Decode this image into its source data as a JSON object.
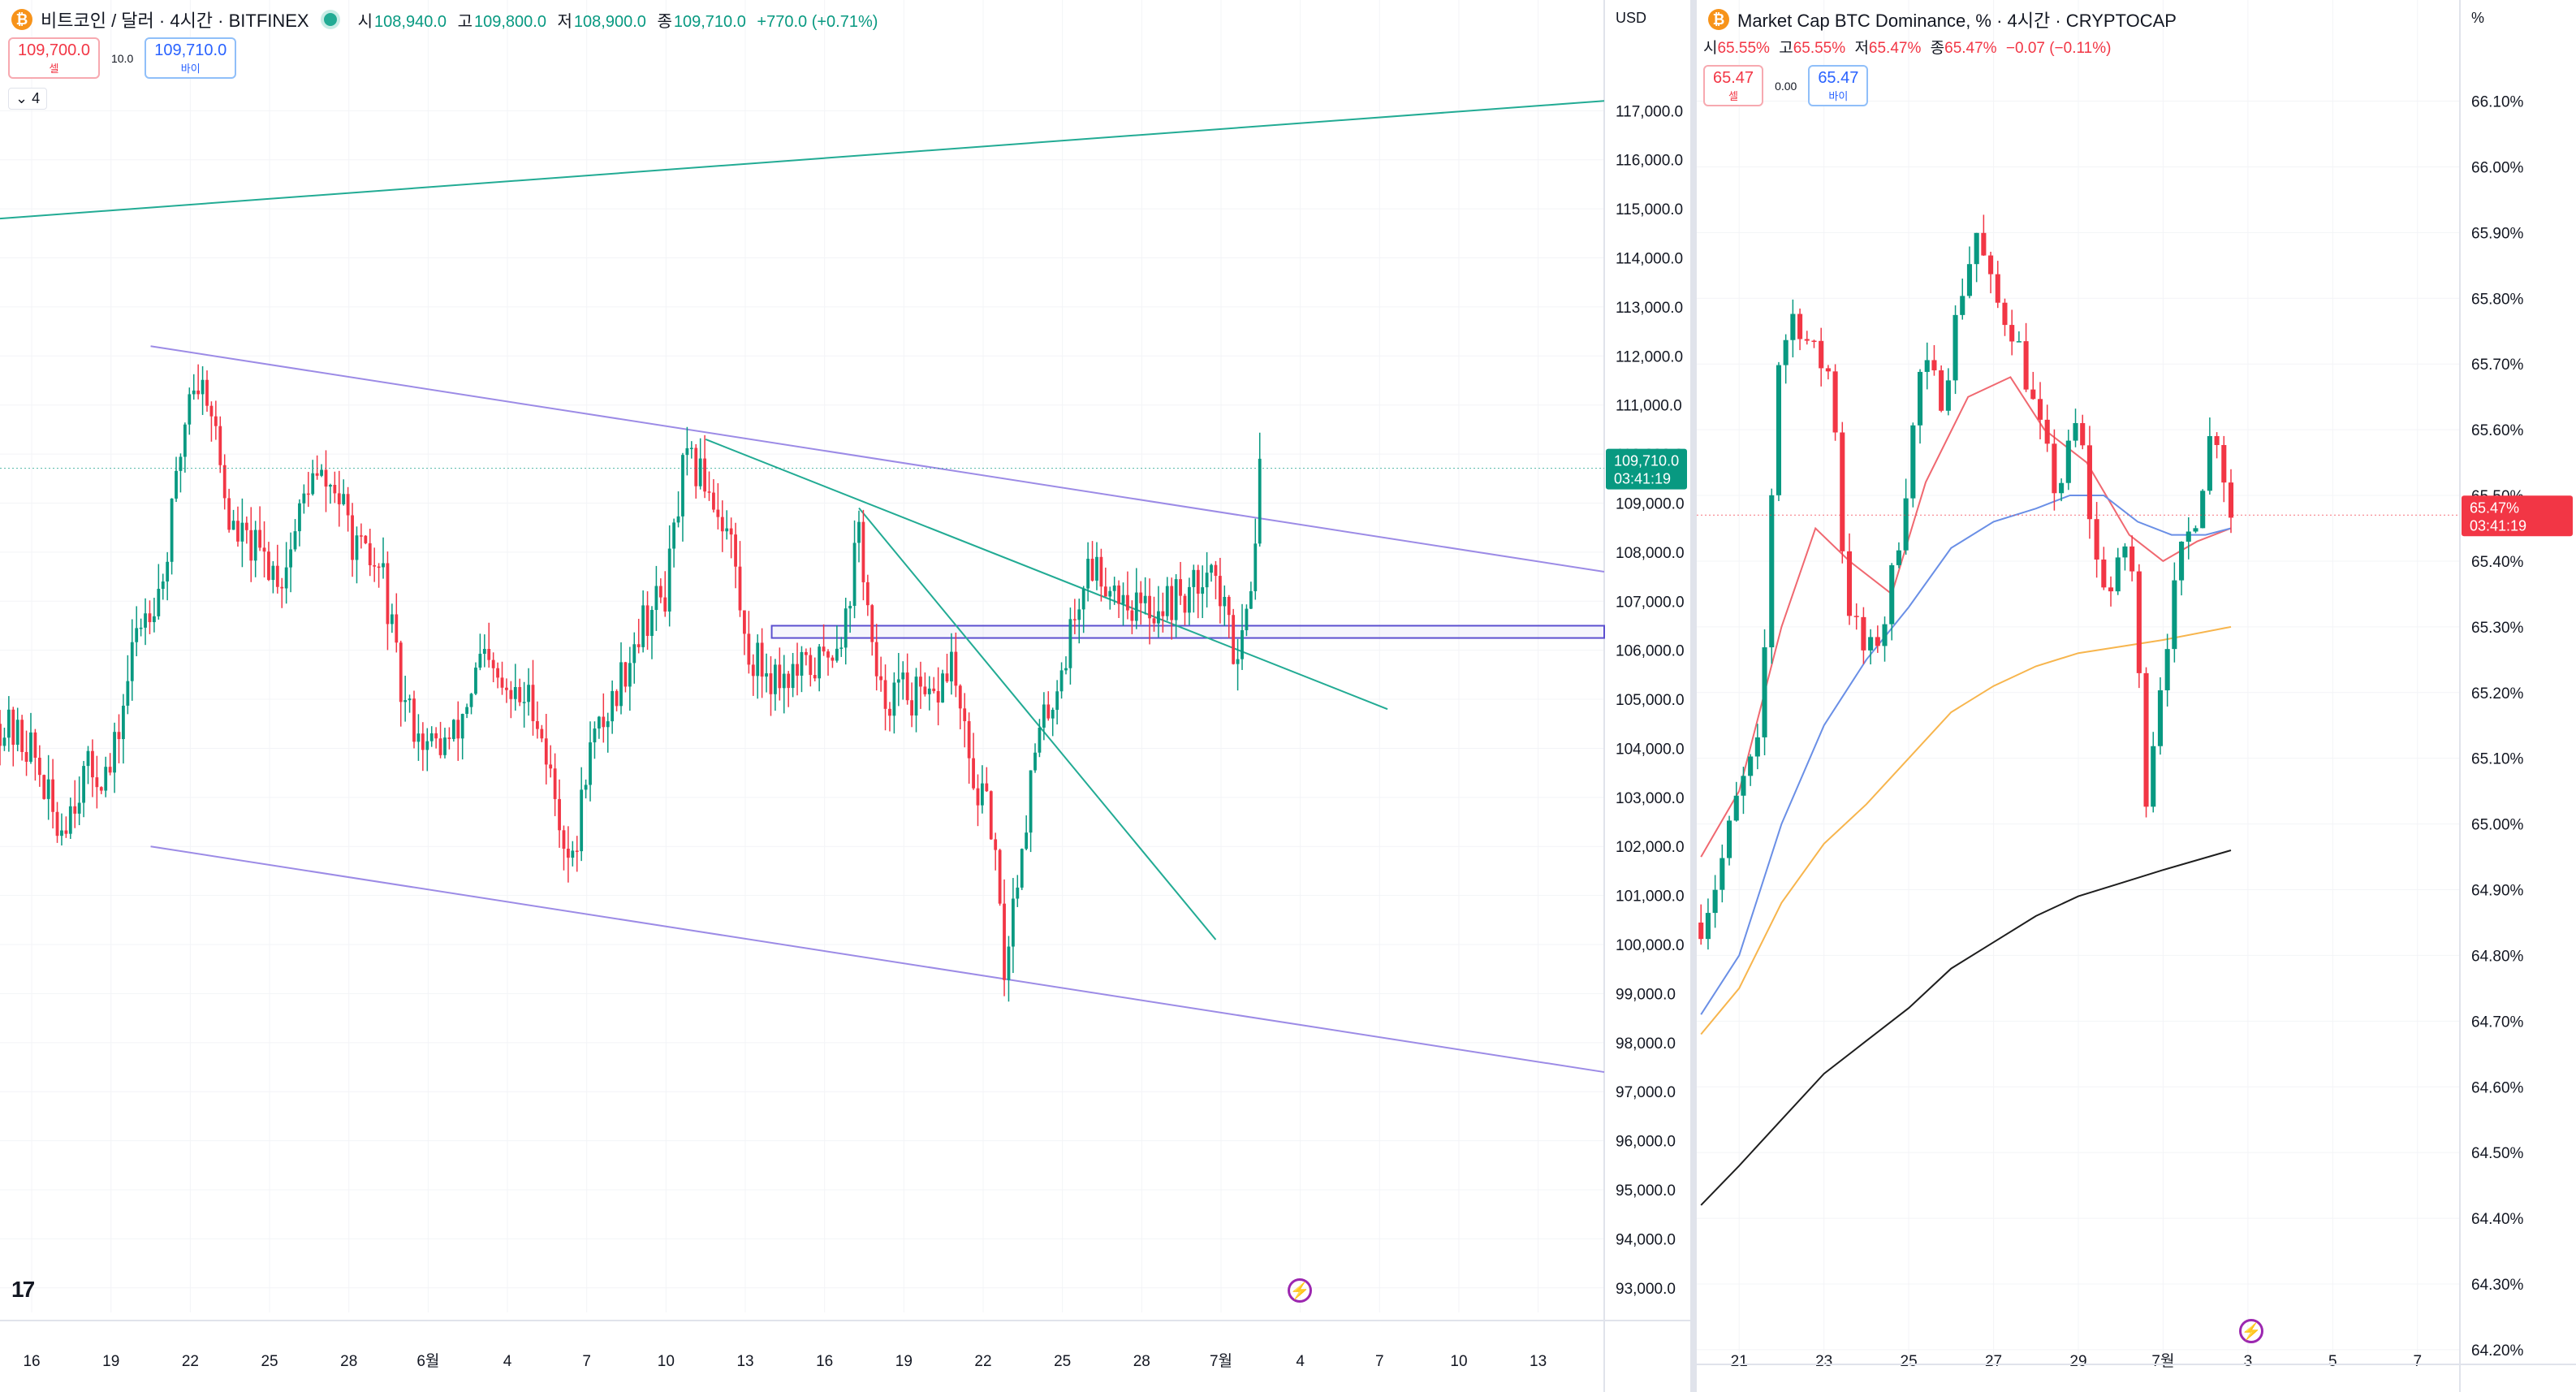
{
  "left": {
    "symbol_title": "비트코인 / 달러 · 4시간 · BITFINEX",
    "coin_glyph": "₿",
    "ohlc": [
      {
        "k": "시",
        "v": "108,940.0"
      },
      {
        "k": "고",
        "v": "109,800.0"
      },
      {
        "k": "저",
        "v": "108,900.0"
      },
      {
        "k": "종",
        "v": "109,710.0"
      }
    ],
    "change": "+770.0 (+0.71%)",
    "sell_price": "109,700.0",
    "sell_label": "셀",
    "spread": "10.0",
    "buy_price": "109,710.0",
    "buy_label": "바이",
    "indicator_toggle": "⌄ 4",
    "currency": "USD",
    "last_price_label": "109,710.0",
    "countdown": "03:41:19",
    "tv_logo": "17",
    "bolt_glyph": "⚡"
  },
  "right": {
    "symbol_title": "Market Cap BTC Dominance, % · 4시간 · CRYPTOCAP",
    "coin_glyph": "₿",
    "ohlc": [
      {
        "k": "시",
        "v": "65.55%"
      },
      {
        "k": "고",
        "v": "65.55%"
      },
      {
        "k": "저",
        "v": "65.47%"
      },
      {
        "k": "종",
        "v": "65.47%"
      }
    ],
    "change": "−0.07 (−0.11%)",
    "sell_price": "65.47",
    "sell_label": "셀",
    "spread": "0.00",
    "buy_price": "65.47",
    "buy_label": "바이",
    "unit": "%",
    "last_price_label": "65.47%",
    "countdown": "03:41:19",
    "bolt_glyph": "⚡"
  },
  "chart_data": [
    {
      "type": "candlestick",
      "title": "비트코인 / 달러 · 4시간 · BITFINEX",
      "ylabel": "USD",
      "ylim": [
        92500,
        117800
      ],
      "y_ticks": [
        "117,000.0",
        "116,000.0",
        "115,000.0",
        "114,000.0",
        "113,000.0",
        "112,000.0",
        "111,000.0",
        "110,000.0",
        "109,000.0",
        "108,000.0",
        "107,000.0",
        "106,000.0",
        "105,000.0",
        "104,000.0",
        "103,000.0",
        "102,000.0",
        "101,000.0",
        "100,000.0",
        "99,000.0",
        "98,000.0",
        "97,000.0",
        "96,000.0",
        "95,000.0",
        "94,000.0",
        "93,000.0"
      ],
      "x_ticks": [
        "16",
        "19",
        "22",
        "25",
        "28",
        "6월",
        "4",
        "7",
        "10",
        "13",
        "16",
        "19",
        "22",
        "25",
        "28",
        "7월",
        "4",
        "7",
        "10",
        "13"
      ],
      "x_tick_days": [
        16,
        19,
        22,
        25,
        28,
        31,
        34,
        37,
        40,
        43,
        46,
        49,
        52,
        55,
        58,
        61,
        64,
        67,
        70,
        73
      ],
      "xlim_days": [
        14.8,
        75.5
      ],
      "day_axis_note_hidden": true,
      "last_price": 109710,
      "key_points": [
        {
          "day": 14.8,
          "close": 104500
        },
        {
          "day": 16.0,
          "close": 104000
        },
        {
          "day": 17.0,
          "close": 102300
        },
        {
          "day": 18.0,
          "close": 103500
        },
        {
          "day": 19.0,
          "close": 103500
        },
        {
          "day": 20.0,
          "close": 106500
        },
        {
          "day": 21.0,
          "close": 107500
        },
        {
          "day": 22.0,
          "close": 111500
        },
        {
          "day": 22.7,
          "close": 111300
        },
        {
          "day": 23.5,
          "close": 108500
        },
        {
          "day": 24.5,
          "close": 108000
        },
        {
          "day": 25.5,
          "close": 107500
        },
        {
          "day": 26.5,
          "close": 109500
        },
        {
          "day": 27.5,
          "close": 109300
        },
        {
          "day": 28.3,
          "close": 108000
        },
        {
          "day": 29.3,
          "close": 107500
        },
        {
          "day": 30.0,
          "close": 105000
        },
        {
          "day": 31.0,
          "close": 104000
        },
        {
          "day": 32.0,
          "close": 104200
        },
        {
          "day": 33.0,
          "close": 105800
        },
        {
          "day": 34.0,
          "close": 105000
        },
        {
          "day": 35.0,
          "close": 105000
        },
        {
          "day": 36.0,
          "close": 102500
        },
        {
          "day": 36.5,
          "close": 101500
        },
        {
          "day": 37.0,
          "close": 103800
        },
        {
          "day": 38.0,
          "close": 105000
        },
        {
          "day": 39.0,
          "close": 106500
        },
        {
          "day": 40.0,
          "close": 107200
        },
        {
          "day": 40.7,
          "close": 109800
        },
        {
          "day": 41.5,
          "close": 109500
        },
        {
          "day": 42.5,
          "close": 108200
        },
        {
          "day": 43.0,
          "close": 106000
        },
        {
          "day": 44.0,
          "close": 105500
        },
        {
          "day": 45.0,
          "close": 105500
        },
        {
          "day": 46.0,
          "close": 105800
        },
        {
          "day": 46.8,
          "close": 106600
        },
        {
          "day": 47.3,
          "close": 108500
        },
        {
          "day": 48.0,
          "close": 105000
        },
        {
          "day": 49.0,
          "close": 105200
        },
        {
          "day": 50.0,
          "close": 104800
        },
        {
          "day": 50.8,
          "close": 105800
        },
        {
          "day": 51.5,
          "close": 103500
        },
        {
          "day": 52.3,
          "close": 102500
        },
        {
          "day": 52.8,
          "close": 99500
        },
        {
          "day": 53.3,
          "close": 101500
        },
        {
          "day": 54.0,
          "close": 104000
        },
        {
          "day": 55.0,
          "close": 105700
        },
        {
          "day": 56.0,
          "close": 107800
        },
        {
          "day": 57.0,
          "close": 107300
        },
        {
          "day": 58.0,
          "close": 106800
        },
        {
          "day": 59.0,
          "close": 107000
        },
        {
          "day": 60.0,
          "close": 107200
        },
        {
          "day": 60.5,
          "close": 108000
        },
        {
          "day": 61.0,
          "close": 107000
        },
        {
          "day": 61.5,
          "close": 106000
        },
        {
          "day": 62.0,
          "close": 106800
        },
        {
          "day": 62.5,
          "close": 109710
        }
      ],
      "drawings": [
        {
          "name": "top-green-trendline",
          "color": "#22ab94",
          "from": {
            "day": 14.8,
            "price": 114800
          },
          "to": {
            "day": 75.5,
            "price": 117200
          }
        },
        {
          "name": "upper-channel-line",
          "color": "#9c8be6",
          "from": {
            "day": 20.5,
            "price": 112200
          },
          "to": {
            "day": 75.5,
            "price": 107600
          }
        },
        {
          "name": "lower-channel-line",
          "color": "#9c8be6",
          "from": {
            "day": 20.5,
            "price": 102000
          },
          "to": {
            "day": 75.5,
            "price": 97400
          }
        },
        {
          "name": "green-descending-line-1",
          "color": "#22ab94",
          "from": {
            "day": 41.5,
            "price": 110300
          },
          "to": {
            "day": 67.3,
            "price": 104800
          }
        },
        {
          "name": "green-descending-line-2",
          "color": "#22ab94",
          "from": {
            "day": 47.3,
            "price": 108900
          },
          "to": {
            "day": 60.8,
            "price": 100100
          }
        }
      ],
      "zone": {
        "name": "support-rectangle",
        "color": "#5b4fcf",
        "day_from": 44.0,
        "day_to": 75.5,
        "price_from": 106250,
        "price_to": 106500
      }
    },
    {
      "type": "candlestick",
      "title": "Market Cap BTC Dominance, % · 4시간 · CRYPTOCAP",
      "ylabel": "%",
      "ylim": [
        64.19,
        66.16
      ],
      "y_ticks": [
        "66.10%",
        "66.00%",
        "65.90%",
        "65.80%",
        "65.70%",
        "65.60%",
        "65.50%",
        "65.40%",
        "65.30%",
        "65.20%",
        "65.10%",
        "65.00%",
        "64.90%",
        "64.80%",
        "64.70%",
        "64.60%",
        "64.50%",
        "64.40%",
        "64.30%",
        "64.20%"
      ],
      "x_ticks": [
        "21",
        "23",
        "25",
        "27",
        "29",
        "7월",
        "3",
        "5",
        "7"
      ],
      "x_tick_days": [
        21,
        23,
        25,
        27,
        29,
        31,
        33,
        35,
        37
      ],
      "xlim_days": [
        20.0,
        38.0
      ],
      "last_price": 65.47,
      "key_points": [
        {
          "day": 20.1,
          "close": 64.85
        },
        {
          "day": 20.5,
          "close": 64.92
        },
        {
          "day": 21.0,
          "close": 65.05
        },
        {
          "day": 21.5,
          "close": 65.12
        },
        {
          "day": 21.9,
          "close": 65.7
        },
        {
          "day": 22.3,
          "close": 65.78
        },
        {
          "day": 22.7,
          "close": 65.72
        },
        {
          "day": 23.2,
          "close": 65.68
        },
        {
          "day": 23.5,
          "close": 65.35
        },
        {
          "day": 24.0,
          "close": 65.25
        },
        {
          "day": 24.4,
          "close": 65.3
        },
        {
          "day": 24.8,
          "close": 65.45
        },
        {
          "day": 25.3,
          "close": 65.7
        },
        {
          "day": 25.8,
          "close": 65.65
        },
        {
          "day": 26.2,
          "close": 65.8
        },
        {
          "day": 26.6,
          "close": 65.9
        },
        {
          "day": 27.0,
          "close": 65.8
        },
        {
          "day": 27.5,
          "close": 65.75
        },
        {
          "day": 28.0,
          "close": 65.62
        },
        {
          "day": 28.5,
          "close": 65.5
        },
        {
          "day": 29.0,
          "close": 65.62
        },
        {
          "day": 29.4,
          "close": 65.4
        },
        {
          "day": 29.8,
          "close": 65.35
        },
        {
          "day": 30.2,
          "close": 65.45
        },
        {
          "day": 30.6,
          "close": 65.05
        },
        {
          "day": 31.0,
          "close": 65.25
        },
        {
          "day": 31.4,
          "close": 65.4
        },
        {
          "day": 31.8,
          "close": 65.48
        },
        {
          "day": 32.2,
          "close": 65.62
        },
        {
          "day": 32.6,
          "close": 65.47
        }
      ],
      "moving_averages": [
        {
          "name": "ma-red",
          "color": "#f06870",
          "points": [
            [
              20.1,
              64.95
            ],
            [
              21,
              65.05
            ],
            [
              22,
              65.3
            ],
            [
              22.8,
              65.45
            ],
            [
              23.6,
              65.4
            ],
            [
              24.6,
              65.35
            ],
            [
              25.4,
              65.52
            ],
            [
              26.4,
              65.65
            ],
            [
              27.4,
              65.68
            ],
            [
              28.2,
              65.6
            ],
            [
              29.2,
              65.55
            ],
            [
              30.2,
              65.44
            ],
            [
              31.0,
              65.4
            ],
            [
              31.8,
              65.43
            ],
            [
              32.6,
              65.45
            ]
          ]
        },
        {
          "name": "ma-blue",
          "color": "#6a8fe6",
          "points": [
            [
              20.1,
              64.71
            ],
            [
              21,
              64.8
            ],
            [
              22,
              65.0
            ],
            [
              23,
              65.15
            ],
            [
              24,
              65.25
            ],
            [
              25,
              65.33
            ],
            [
              26,
              65.42
            ],
            [
              27,
              65.46
            ],
            [
              28,
              65.48
            ],
            [
              28.8,
              65.5
            ],
            [
              29.6,
              65.5
            ],
            [
              30.4,
              65.46
            ],
            [
              31.2,
              65.44
            ],
            [
              32.0,
              65.44
            ],
            [
              32.6,
              65.45
            ]
          ]
        },
        {
          "name": "ma-orange",
          "color": "#f7b54d",
          "points": [
            [
              20.1,
              64.68
            ],
            [
              21,
              64.75
            ],
            [
              22,
              64.88
            ],
            [
              23,
              64.97
            ],
            [
              24,
              65.03
            ],
            [
              25,
              65.1
            ],
            [
              26,
              65.17
            ],
            [
              27,
              65.21
            ],
            [
              28,
              65.24
            ],
            [
              29,
              65.26
            ],
            [
              30,
              65.27
            ],
            [
              31,
              65.28
            ],
            [
              32.6,
              65.3
            ]
          ]
        },
        {
          "name": "ma-black",
          "color": "#1e1e1e",
          "points": [
            [
              20.1,
              64.42
            ],
            [
              21,
              64.48
            ],
            [
              22,
              64.55
            ],
            [
              23,
              64.62
            ],
            [
              24,
              64.67
            ],
            [
              25,
              64.72
            ],
            [
              26,
              64.78
            ],
            [
              27,
              64.82
            ],
            [
              28,
              64.86
            ],
            [
              29,
              64.89
            ],
            [
              30,
              64.91
            ],
            [
              31,
              64.93
            ],
            [
              32.6,
              64.96
            ]
          ]
        }
      ]
    }
  ],
  "colors": {
    "up": "#089981",
    "down": "#f23645",
    "grid": "#f0f3fa",
    "axis_text": "#131722"
  }
}
